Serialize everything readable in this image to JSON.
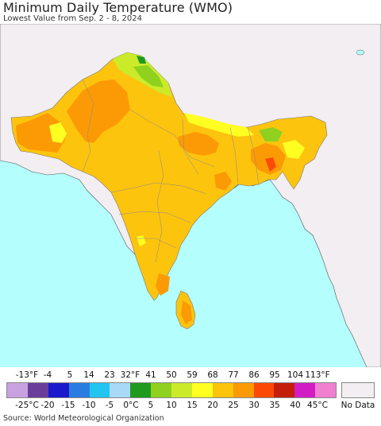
{
  "header": {
    "title": "Minimum Daily Temperature (WMO)",
    "subtitle": "Lowest Value from Sep. 2 - 8, 2024"
  },
  "legend": {
    "fahrenheit_labels": [
      "-13°F",
      "-4",
      "5",
      "14",
      "23",
      "32°F",
      "41",
      "50",
      "59",
      "68",
      "77",
      "86",
      "95",
      "104",
      "113°F"
    ],
    "celsius_labels": [
      "-25°C",
      "-20",
      "-15",
      "-10",
      "-5",
      "0°C",
      "5",
      "10",
      "15",
      "20",
      "25",
      "30",
      "35",
      "40",
      "45°C"
    ],
    "colors": [
      "#c8a2e0",
      "#6a3d9a",
      "#1a1acc",
      "#2a7de0",
      "#22c4f0",
      "#a8daf5",
      "#1f9a1f",
      "#8fd11e",
      "#cbeb2a",
      "#ffff22",
      "#fdc40e",
      "#fc9a05",
      "#fb4a07",
      "#c41e0a",
      "#d21cc4",
      "#f07fd0"
    ],
    "no_data_label": "No Data",
    "no_data_color": "#f2eef2"
  },
  "map": {
    "ocean_color": "#b4fefe",
    "land_outside_color": "#f2eef2",
    "boundary_color": "#7a7a7a"
  },
  "footer": {
    "source": "Source: World Meteorological Organization"
  }
}
